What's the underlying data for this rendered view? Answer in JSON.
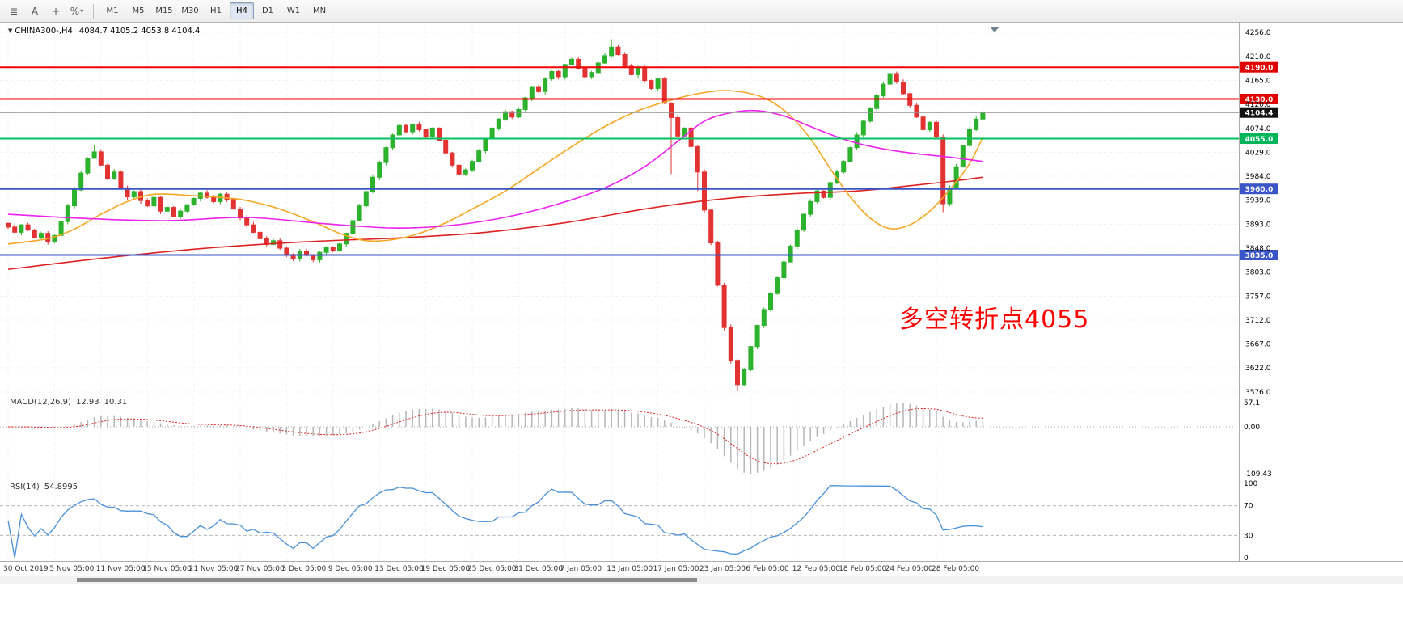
{
  "toolbar": {
    "tools": [
      {
        "name": "chart-list-icon",
        "glyph": "≣",
        "caret": false
      },
      {
        "name": "text-annotation-icon",
        "glyph": "A",
        "caret": false
      },
      {
        "name": "crosshair-icon",
        "glyph": "+",
        "caret": false
      },
      {
        "name": "indicator-scale-icon",
        "glyph": "%",
        "caret": true
      }
    ],
    "timeframes": [
      "M1",
      "M5",
      "M15",
      "M30",
      "H1",
      "H4",
      "D1",
      "W1",
      "MN"
    ],
    "active_timeframe": "H4"
  },
  "chart_data": {
    "type": "candlestick",
    "symbol": "CHINA300-,H4",
    "ohlc_text": "4084.7 4105.2 4053.8 4104.4",
    "timeframe": "H4",
    "price_range": {
      "min": 3576,
      "max": 4256
    },
    "price_axis": [
      "4256.0",
      "4210.0",
      "4165.0",
      "4120.0",
      "4074.0",
      "4029.0",
      "3984.0",
      "3939.0",
      "3893.0",
      "3848.0",
      "3803.0",
      "3757.0",
      "3712.0",
      "3667.0",
      "3622.0",
      "3576.0"
    ],
    "first_open": 3895,
    "closes": [
      3888,
      3878,
      3892,
      3882,
      3868,
      3876,
      3860,
      3872,
      3898,
      3928,
      3958,
      3990,
      4018,
      4030,
      4005,
      3980,
      3992,
      3962,
      3945,
      3955,
      3938,
      3928,
      3944,
      3918,
      3925,
      3908,
      3918,
      3930,
      3942,
      3952,
      3944,
      3936,
      3950,
      3940,
      3922,
      3905,
      3892,
      3878,
      3866,
      3855,
      3862,
      3848,
      3836,
      3828,
      3842,
      3834,
      3826,
      3840,
      3850,
      3844,
      3856,
      3876,
      3900,
      3928,
      3955,
      3982,
      4010,
      4038,
      4062,
      4080,
      4068,
      4082,
      4072,
      4058,
      4075,
      4052,
      4028,
      4005,
      3988,
      3996,
      4012,
      4032,
      4055,
      4075,
      4092,
      4106,
      4096,
      4110,
      4132,
      4152,
      4144,
      4168,
      4182,
      4172,
      4195,
      4205,
      4188,
      4172,
      4180,
      4198,
      4212,
      4228,
      4214,
      4192,
      4176,
      4188,
      4165,
      4150,
      4168,
      4122,
      4095,
      4060,
      4075,
      4040,
      3992,
      3920,
      3858,
      3778,
      3698,
      3636,
      3590,
      3618,
      3662,
      3702,
      3732,
      3762,
      3792,
      3822,
      3852,
      3882,
      3912,
      3936,
      3956,
      3944,
      3972,
      3992,
      4012,
      4038,
      4062,
      4088,
      4112,
      4136,
      4158,
      4178,
      4162,
      4140,
      4118,
      4096,
      4072,
      4086,
      4058,
      3932,
      3962,
      4002,
      4042,
      4072,
      4092,
      4104.4
    ],
    "wick_high_overrides": {
      "13": 4042,
      "91": 4243
    },
    "wick_low_overrides": {
      "100": 3988,
      "104": 3956,
      "110": 3578,
      "141": 3916
    },
    "levels": [
      {
        "label": "4190.0",
        "price": 4190.0,
        "line": "#f20000",
        "tag": "#e00000",
        "width": 2
      },
      {
        "label": "4130.0",
        "price": 4130.0,
        "line": "#f20000",
        "tag": "#e00000",
        "width": 2
      },
      {
        "label": "4104.4",
        "price": 4104.4,
        "line": "#8f8f8f",
        "tag": "#111111",
        "width": 1
      },
      {
        "label": "4055.0",
        "price": 4055.0,
        "line": "#00c060",
        "tag": "#00b45a",
        "width": 2
      },
      {
        "label": "3960.0",
        "price": 3960.0,
        "line": "#3a55c8",
        "tag": "#3a55c8",
        "width": 2
      },
      {
        "label": "3835.0",
        "price": 3835.0,
        "line": "#3a55c8",
        "tag": "#3a55c8",
        "width": 2
      }
    ],
    "moving_averages": [
      {
        "name": "ma-long-red",
        "color": "#dd2222",
        "points": [
          [
            0,
            3808
          ],
          [
            15,
            3830
          ],
          [
            30,
            3848
          ],
          [
            45,
            3860
          ],
          [
            60,
            3868
          ],
          [
            72,
            3878
          ],
          [
            84,
            3896
          ],
          [
            95,
            3920
          ],
          [
            104,
            3936
          ],
          [
            112,
            3946
          ],
          [
            120,
            3952
          ],
          [
            128,
            3956
          ],
          [
            136,
            3966
          ],
          [
            142,
            3974
          ],
          [
            147,
            3982
          ]
        ]
      },
      {
        "name": "ma-medium-orange",
        "color": "#f5a623",
        "points": [
          [
            0,
            3856
          ],
          [
            6,
            3866
          ],
          [
            10,
            3884
          ],
          [
            14,
            3912
          ],
          [
            18,
            3936
          ],
          [
            22,
            3950
          ],
          [
            27,
            3948
          ],
          [
            32,
            3944
          ],
          [
            36,
            3938
          ],
          [
            41,
            3922
          ],
          [
            46,
            3898
          ],
          [
            50,
            3876
          ],
          [
            54,
            3862
          ],
          [
            58,
            3864
          ],
          [
            62,
            3876
          ],
          [
            66,
            3896
          ],
          [
            70,
            3922
          ],
          [
            75,
            3956
          ],
          [
            80,
            3998
          ],
          [
            85,
            4040
          ],
          [
            90,
            4078
          ],
          [
            95,
            4108
          ],
          [
            100,
            4128
          ],
          [
            104,
            4140
          ],
          [
            108,
            4146
          ],
          [
            112,
            4140
          ],
          [
            115,
            4126
          ],
          [
            118,
            4098
          ],
          [
            121,
            4055
          ],
          [
            124,
            3998
          ],
          [
            127,
            3945
          ],
          [
            130,
            3905
          ],
          [
            133,
            3885
          ],
          [
            136,
            3892
          ],
          [
            139,
            3918
          ],
          [
            142,
            3958
          ],
          [
            145,
            4008
          ],
          [
            147,
            4058
          ]
        ]
      },
      {
        "name": "ma-slow-magenta",
        "color": "#ee22ee",
        "points": [
          [
            0,
            3912
          ],
          [
            12,
            3904
          ],
          [
            24,
            3900
          ],
          [
            36,
            3906
          ],
          [
            48,
            3894
          ],
          [
            58,
            3886
          ],
          [
            66,
            3890
          ],
          [
            74,
            3904
          ],
          [
            82,
            3928
          ],
          [
            90,
            3962
          ],
          [
            96,
            4002
          ],
          [
            101,
            4050
          ],
          [
            105,
            4088
          ],
          [
            109,
            4104
          ],
          [
            113,
            4108
          ],
          [
            117,
            4098
          ],
          [
            121,
            4078
          ],
          [
            126,
            4054
          ],
          [
            131,
            4038
          ],
          [
            136,
            4028
          ],
          [
            142,
            4020
          ],
          [
            147,
            4012
          ]
        ]
      }
    ],
    "annotation": {
      "text": "多空转折点4055",
      "color": "#ff0000"
    },
    "x_axis": {
      "labels": [
        "30 Oct 2019",
        "5 Nov 05:00",
        "11 Nov 05:00",
        "15 Nov 05:00",
        "21 Nov 05:00",
        "27 Nov 05:00",
        "3 Dec 05:00",
        "9 Dec 05:00",
        "13 Dec 05:00",
        "19 Dec 05:00",
        "25 Dec 05:00",
        "31 Dec 05:00",
        "7 Jan 05:00",
        "13 Jan 05:00",
        "17 Jan 05:00",
        "23 Jan 05:00",
        "6 Feb 05:00",
        "12 Feb 05:00",
        "18 Feb 05:00",
        "24 Feb 05:00",
        "28 Feb 05:00"
      ],
      "indices": [
        0,
        7,
        14,
        21,
        28,
        35,
        42,
        49,
        56,
        63,
        70,
        77,
        84,
        91,
        98,
        105,
        112,
        119,
        126,
        133,
        140
      ]
    },
    "colors": {
      "up": "#2db22d",
      "down": "#e23232",
      "grid": "#ececec",
      "background": "#ffffff"
    }
  },
  "indicators": {
    "macd": {
      "name": "MACD(12,26,9)",
      "value_main": "12.93",
      "value_signal": "10.31",
      "axis": [
        "57.1",
        "0.00",
        "-109.43"
      ],
      "histogram_color": "#b6b6b6",
      "signal_color": "#dd2222"
    },
    "rsi": {
      "name": "RSI(14)",
      "value": "54.8995",
      "axis": [
        "100",
        "70",
        "30",
        "0"
      ],
      "levels": [
        70,
        30
      ],
      "line_color": "#4a90d9"
    }
  }
}
